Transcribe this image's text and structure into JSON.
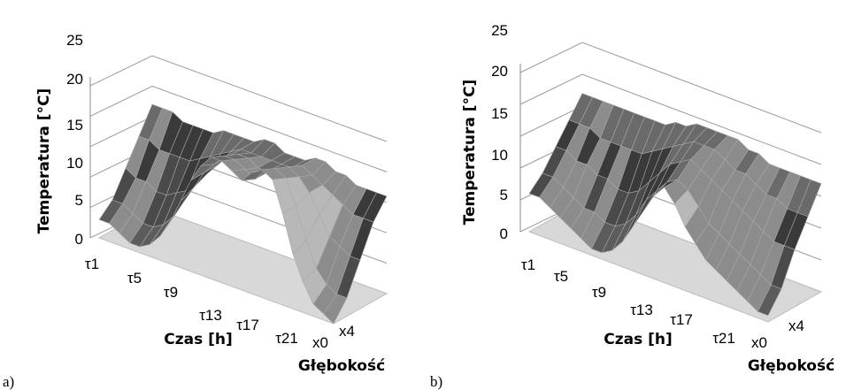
{
  "chart_data": [
    {
      "type": "surface",
      "panel_label": "a)",
      "zlabel": "Temperatura [°C]",
      "xlabel": "Czas [h]",
      "ylabel": "Głębokość",
      "z_ticks": [
        "0",
        "5",
        "10",
        "15",
        "20",
        "25"
      ],
      "zlim": [
        0,
        25
      ],
      "time_ticks": [
        "τ1",
        "τ5",
        "τ9",
        "τ13",
        "τ17",
        "τ21"
      ],
      "depth_ticks": [
        "x0",
        "x4"
      ],
      "time_steps": 24,
      "depth_steps": 5,
      "surface_by_depth": [
        [
          3,
          3,
          2,
          1,
          1,
          2,
          4,
          7,
          11,
          15,
          18,
          20,
          20,
          19,
          18,
          20,
          21,
          20,
          15,
          9,
          5,
          2,
          1,
          0
        ],
        [
          5,
          5,
          4,
          3,
          3,
          4,
          6,
          9,
          12,
          15,
          17,
          19,
          19,
          18,
          17,
          19,
          20,
          19,
          15,
          10,
          6,
          4,
          3,
          3
        ],
        [
          9,
          8,
          8,
          7,
          7,
          8,
          9,
          11,
          13,
          15,
          17,
          18,
          18,
          17,
          17,
          18,
          19,
          18,
          16,
          13,
          10,
          9,
          8,
          8
        ],
        [
          13,
          13,
          12,
          12,
          12,
          12,
          13,
          14,
          15,
          16,
          17,
          17,
          17,
          17,
          17,
          17,
          18,
          17,
          16,
          15,
          14,
          13,
          13,
          13
        ],
        [
          17,
          17,
          17,
          16,
          16,
          16,
          16,
          17,
          17,
          17,
          17,
          18,
          18,
          17,
          17,
          17,
          18,
          18,
          17,
          17,
          16,
          16,
          16,
          16
        ]
      ]
    },
    {
      "type": "surface",
      "panel_label": "b)",
      "zlabel": "Temperatura [°C]",
      "xlabel": "Czas [h]",
      "ylabel": "Głębokość",
      "z_ticks": [
        "0",
        "5",
        "10",
        "15",
        "20",
        "25"
      ],
      "zlim": [
        0,
        25
      ],
      "time_ticks": [
        "τ1",
        "τ5",
        "τ9",
        "τ13",
        "τ17",
        "τ21"
      ],
      "depth_ticks": [
        "x0",
        "x4"
      ],
      "time_steps": 24,
      "depth_steps": 5,
      "surface_by_depth": [
        [
          6,
          6,
          5,
          4,
          3,
          2,
          1,
          1,
          2,
          4,
          7,
          10,
          13,
          15,
          13,
          10,
          8,
          6,
          5,
          4,
          3,
          2,
          1,
          1
        ],
        [
          8,
          8,
          7,
          6,
          5,
          5,
          4,
          4,
          5,
          7,
          10,
          12,
          14,
          15,
          14,
          12,
          10,
          9,
          8,
          7,
          6,
          5,
          4,
          4
        ],
        [
          11,
          11,
          10,
          10,
          9,
          9,
          8,
          8,
          9,
          11,
          13,
          15,
          16,
          17,
          16,
          15,
          14,
          13,
          12,
          11,
          10,
          9,
          9,
          9
        ],
        [
          14,
          14,
          14,
          13,
          13,
          13,
          13,
          13,
          14,
          15,
          16,
          17,
          18,
          18,
          18,
          17,
          16,
          16,
          15,
          14,
          14,
          13,
          13,
          13
        ],
        [
          17,
          17,
          17,
          17,
          17,
          17,
          17,
          17,
          17,
          18,
          18,
          19,
          19,
          19,
          19,
          19,
          18,
          18,
          17,
          17,
          17,
          17,
          17,
          17
        ]
      ]
    }
  ]
}
